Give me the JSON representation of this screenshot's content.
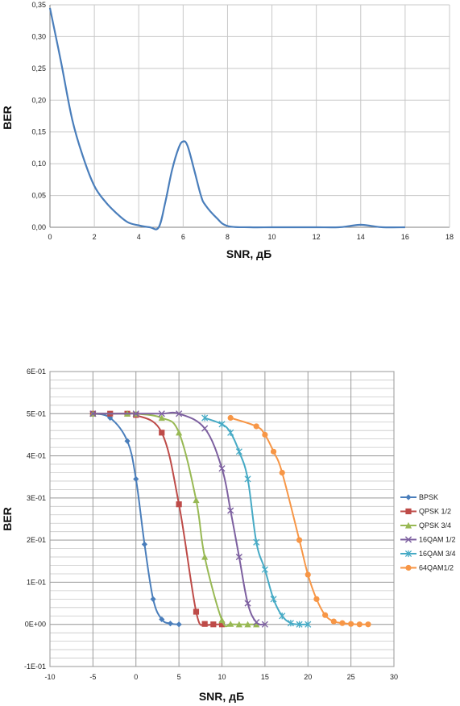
{
  "chart_data": [
    {
      "type": "line",
      "title": "",
      "xlabel": "SNR, дБ",
      "ylabel": "BER",
      "xlim": [
        0,
        18
      ],
      "ylim": [
        0,
        0.35
      ],
      "xticks": [
        "0",
        "2",
        "4",
        "6",
        "8",
        "10",
        "12",
        "14",
        "16",
        "18"
      ],
      "yticks": [
        "0,00",
        "0,05",
        "0,10",
        "0,15",
        "0,20",
        "0,25",
        "0,30",
        "0,35"
      ],
      "grid": true,
      "legend": "none",
      "colors": [
        "#4a7ebb"
      ],
      "series": [
        {
          "x": [
            0,
            0.5,
            1,
            1.5,
            2,
            2.5,
            3,
            3.5,
            4,
            4.5,
            4.9,
            5.2,
            5.5,
            5.8,
            6,
            6.2,
            6.5,
            6.8,
            7,
            7.5,
            8,
            9,
            10,
            11,
            12,
            13,
            13.5,
            14,
            14.5,
            15,
            16
          ],
          "y": [
            0.345,
            0.26,
            0.17,
            0.11,
            0.065,
            0.04,
            0.022,
            0.008,
            0.003,
            0.0,
            0.0,
            0.04,
            0.09,
            0.125,
            0.135,
            0.128,
            0.09,
            0.05,
            0.035,
            0.015,
            0.002,
            0.0,
            0.0,
            0.0,
            0.0,
            0.0,
            0.002,
            0.004,
            0.002,
            0.0,
            0.0
          ]
        }
      ]
    },
    {
      "type": "line",
      "title": "",
      "xlabel": "SNR, дБ",
      "ylabel": "BER",
      "xlim": [
        -10,
        30
      ],
      "ylim": [
        -0.1,
        0.6
      ],
      "xticks": [
        "-10",
        "-5",
        "0",
        "5",
        "10",
        "15",
        "20",
        "25",
        "30"
      ],
      "yticks": [
        "-1E-01",
        "0E+00",
        "1E-01",
        "2E-01",
        "3E-01",
        "4E-01",
        "5E-01",
        "6E-01"
      ],
      "grid": true,
      "legend": "right",
      "series": [
        {
          "name": "BPSK",
          "color": "#4a7ebb",
          "marker": "diamond",
          "x": [
            -5,
            -3,
            -1,
            0,
            1,
            2,
            3,
            4,
            5
          ],
          "y": [
            0.5,
            0.49,
            0.435,
            0.345,
            0.19,
            0.06,
            0.012,
            0.002,
            0.0
          ]
        },
        {
          "name": "QPSK 1/2",
          "color": "#be4b48",
          "marker": "square",
          "x": [
            -5,
            -3,
            -1,
            0,
            3,
            5,
            7,
            8,
            9,
            10
          ],
          "y": [
            0.5,
            0.5,
            0.5,
            0.497,
            0.455,
            0.285,
            0.03,
            0.001,
            0.0,
            0.0
          ]
        },
        {
          "name": "QPSK 3/4",
          "color": "#98b954",
          "marker": "triangle",
          "x": [
            -5,
            -1,
            0,
            3,
            5,
            7,
            8,
            10,
            11,
            12,
            13,
            14
          ],
          "y": [
            0.5,
            0.5,
            0.5,
            0.49,
            0.455,
            0.295,
            0.16,
            0.01,
            0.001,
            0.0,
            0.0,
            0.0
          ]
        },
        {
          "name": "16QAM 1/2",
          "color": "#7d60a0",
          "marker": "x",
          "x": [
            -5,
            0,
            3,
            5,
            8,
            10,
            11,
            12,
            13,
            14,
            15
          ],
          "y": [
            0.5,
            0.5,
            0.5,
            0.5,
            0.465,
            0.37,
            0.27,
            0.16,
            0.05,
            0.005,
            0.0
          ]
        },
        {
          "name": "16QAM 3/4",
          "color": "#46aac5",
          "marker": "star",
          "x": [
            8,
            10,
            11,
            12,
            13,
            14,
            15,
            16,
            17,
            18,
            19,
            20
          ],
          "y": [
            0.49,
            0.475,
            0.455,
            0.41,
            0.345,
            0.195,
            0.13,
            0.06,
            0.02,
            0.003,
            0.0,
            0.0
          ]
        },
        {
          "name": "64QAM1/2",
          "color": "#f79646",
          "marker": "circle",
          "x": [
            11,
            14,
            15,
            16,
            17,
            19,
            20,
            21,
            22,
            23,
            24,
            25,
            26,
            27
          ],
          "y": [
            0.49,
            0.47,
            0.45,
            0.41,
            0.36,
            0.2,
            0.118,
            0.06,
            0.022,
            0.007,
            0.003,
            0.001,
            0.0,
            0.0
          ]
        }
      ]
    }
  ]
}
